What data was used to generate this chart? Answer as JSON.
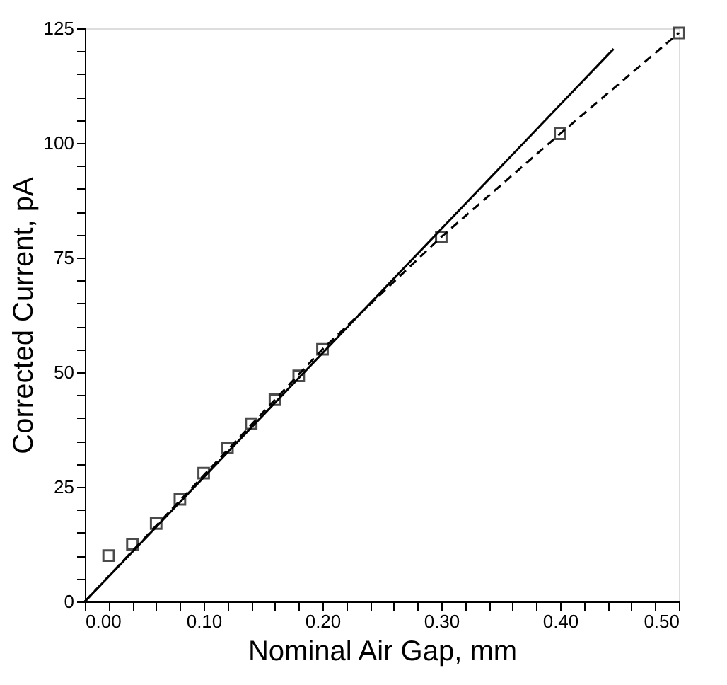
{
  "chart_data": {
    "type": "scatter",
    "xlabel": "Nominal Air Gap, mm",
    "ylabel": "Corrected Current, pA",
    "xlim": [
      0,
      0.5
    ],
    "ylim": [
      0,
      125
    ],
    "xticks": [
      {
        "value": 0,
        "label": "0.00"
      },
      {
        "value": 0.02,
        "label": null
      },
      {
        "value": 0.04,
        "label": null
      },
      {
        "value": 0.06,
        "label": null
      },
      {
        "value": 0.08,
        "label": null
      },
      {
        "value": 0.1,
        "label": "0.10"
      },
      {
        "value": 0.12,
        "label": null
      },
      {
        "value": 0.14,
        "label": null
      },
      {
        "value": 0.16,
        "label": null
      },
      {
        "value": 0.18,
        "label": null
      },
      {
        "value": 0.2,
        "label": "0.20"
      },
      {
        "value": 0.22,
        "label": null
      },
      {
        "value": 0.24,
        "label": null
      },
      {
        "value": 0.26,
        "label": null
      },
      {
        "value": 0.28,
        "label": null
      },
      {
        "value": 0.3,
        "label": "0.30"
      },
      {
        "value": 0.32,
        "label": null
      },
      {
        "value": 0.34,
        "label": null
      },
      {
        "value": 0.36,
        "label": null
      },
      {
        "value": 0.38,
        "label": null
      },
      {
        "value": 0.4,
        "label": "0.40"
      },
      {
        "value": 0.42,
        "label": null
      },
      {
        "value": 0.44,
        "label": null
      },
      {
        "value": 0.46,
        "label": null
      },
      {
        "value": 0.48,
        "label": null
      },
      {
        "value": 0.5,
        "label": "0.50"
      }
    ],
    "yticks": [
      0,
      {
        "value": 5,
        "label": null
      },
      {
        "value": 10,
        "label": null
      },
      {
        "value": 15,
        "label": null
      },
      {
        "value": 20,
        "label": null
      },
      25,
      {
        "value": 30,
        "label": null
      },
      {
        "value": 35,
        "label": null
      },
      {
        "value": 40,
        "label": null
      },
      {
        "value": 45,
        "label": null
      },
      50,
      {
        "value": 55,
        "label": null
      },
      {
        "value": 60,
        "label": null
      },
      {
        "value": 65,
        "label": null
      },
      {
        "value": 70,
        "label": null
      },
      75,
      {
        "value": 80,
        "label": null
      },
      {
        "value": 85,
        "label": null
      },
      {
        "value": 90,
        "label": null
      },
      {
        "value": 95,
        "label": null
      },
      100,
      {
        "value": 105,
        "label": null
      },
      {
        "value": 110,
        "label": null
      },
      {
        "value": 115,
        "label": null
      },
      {
        "value": 120,
        "label": null
      },
      125
    ],
    "grid": false,
    "series": [
      {
        "color": "#000000",
        "marker": "square",
        "x": [
          0.02,
          0.04,
          0.06,
          0.08,
          0.1,
          0.12,
          0.14,
          0.16,
          0.18,
          0.2,
          0.3,
          0.4,
          0.5
        ],
        "values": [
          10,
          12.5,
          17,
          22.3,
          28,
          33.5,
          38.8,
          44,
          49.2,
          55,
          79.5,
          102,
          124
        ]
      },
      {
        "type": "line",
        "color": "#000000",
        "marker": "none",
        "line_style": "solid",
        "x": [
          0,
          0.445
        ],
        "values": [
          0,
          120.5
        ]
      },
      {
        "type": "line",
        "color": "#000000",
        "marker": "none",
        "line_style": "dashed",
        "x": [
          0,
          0.2,
          0.3,
          0.4,
          0.5
        ],
        "values": [
          0,
          55,
          79.5,
          102,
          124
        ]
      }
    ]
  }
}
